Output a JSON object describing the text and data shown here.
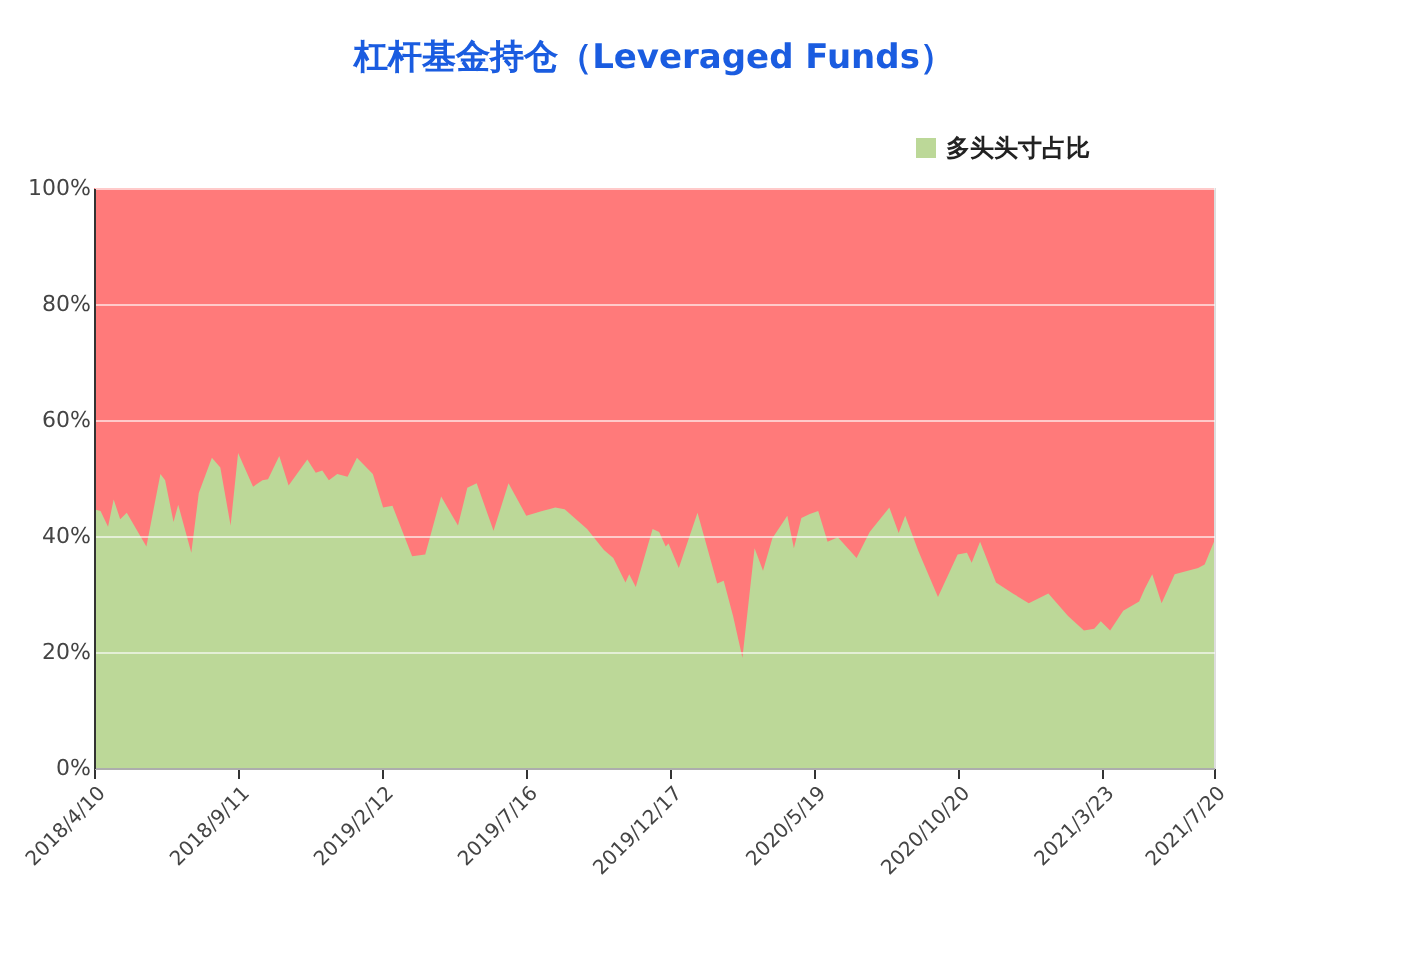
{
  "chart_data": {
    "type": "area",
    "title": "杠杆基金持仓（Leveraged Funds）",
    "x": [
      "2018-04-10",
      "2018-04-17",
      "2018-04-25",
      "2018-05-01",
      "2018-05-08",
      "2018-05-15",
      "2018-06-05",
      "2018-06-20",
      "2018-06-25",
      "2018-07-04",
      "2018-07-09",
      "2018-07-23",
      "2018-07-31",
      "2018-08-14",
      "2018-08-23",
      "2018-09-03",
      "2018-09-11",
      "2018-09-27",
      "2018-10-07",
      "2018-10-13",
      "2018-10-25",
      "2018-11-04",
      "2018-11-24",
      "2018-12-03",
      "2018-12-10",
      "2018-12-17",
      "2018-12-26",
      "2019-01-06",
      "2019-01-16",
      "2019-02-02",
      "2019-02-13",
      "2019-02-23",
      "2019-03-16",
      "2019-03-30",
      "2019-04-16",
      "2019-05-04",
      "2019-05-14",
      "2019-05-24",
      "2019-06-11",
      "2019-06-27",
      "2019-07-16",
      "2019-08-02",
      "2019-08-16",
      "2019-08-26",
      "2019-09-19",
      "2019-10-07",
      "2019-10-17",
      "2019-10-30",
      "2019-11-03",
      "2019-11-10",
      "2019-11-28",
      "2019-12-05",
      "2019-12-12",
      "2019-12-15",
      "2019-12-26",
      "2020-01-15",
      "2020-02-05",
      "2020-02-12",
      "2020-02-22",
      "2020-03-03",
      "2020-03-16",
      "2020-03-25",
      "2020-04-04",
      "2020-04-20",
      "2020-04-27",
      "2020-05-05",
      "2020-05-14",
      "2020-05-23",
      "2020-06-02",
      "2020-06-13",
      "2020-07-03",
      "2020-07-17",
      "2020-08-07",
      "2020-08-17",
      "2020-08-24",
      "2020-09-07",
      "2020-09-28",
      "2020-10-19",
      "2020-10-29",
      "2020-11-03",
      "2020-11-12",
      "2020-11-29",
      "2020-12-17",
      "2021-01-03",
      "2021-01-24",
      "2021-02-14",
      "2021-03-03",
      "2021-03-14",
      "2021-03-21",
      "2021-03-31",
      "2021-04-14",
      "2021-05-01",
      "2021-05-07",
      "2021-05-15",
      "2021-05-25",
      "2021-06-08",
      "2021-07-03",
      "2021-07-10",
      "2021-07-20"
    ],
    "series": [
      {
        "name": "多头头寸占比",
        "color": "#bcd898",
        "values": [
          44.6,
          44.3,
          41.6,
          46.3,
          42.9,
          44.0,
          38.2,
          50.7,
          49.6,
          42.4,
          45.4,
          37.1,
          47.4,
          53.5,
          51.8,
          41.8,
          54.3,
          48.5,
          49.6,
          49.8,
          53.8,
          48.7,
          53.2,
          50.9,
          51.3,
          49.6,
          50.7,
          50.2,
          53.5,
          50.7,
          44.9,
          45.2,
          36.5,
          36.8,
          46.8,
          41.8,
          48.3,
          49.1,
          40.9,
          49.1,
          43.5,
          44.3,
          44.9,
          44.6,
          41.2,
          37.6,
          36.2,
          32.0,
          33.4,
          31.2,
          41.2,
          40.7,
          38.2,
          38.7,
          34.5,
          44.0,
          31.8,
          32.3,
          26.2,
          19.0,
          37.9,
          34.0,
          39.6,
          43.5,
          37.9,
          43.1,
          43.8,
          44.3,
          39.0,
          39.8,
          36.2,
          40.7,
          44.9,
          40.5,
          43.5,
          37.4,
          29.5,
          36.8,
          37.1,
          35.4,
          39.0,
          32.0,
          30.1,
          28.4,
          30.1,
          26.2,
          23.7,
          24.0,
          25.3,
          23.7,
          27.1,
          28.7,
          30.9,
          33.4,
          28.4,
          33.4,
          34.5,
          35.1,
          39.0
        ]
      }
    ],
    "xlim": [
      "2018-04-10",
      "2021-07-20"
    ],
    "xticks": [
      {
        "value": "2018-04-10",
        "label": "2018/4/10"
      },
      {
        "value": "2018-09-11",
        "label": "2018/9/11"
      },
      {
        "value": "2019-02-12",
        "label": "2019/2/12"
      },
      {
        "value": "2019-07-16",
        "label": "2019/7/16"
      },
      {
        "value": "2019-12-17",
        "label": "2019/12/17"
      },
      {
        "value": "2020-05-19",
        "label": "2020/5/19"
      },
      {
        "value": "2020-10-20",
        "label": "2020/10/20"
      },
      {
        "value": "2021-03-23",
        "label": "2021/3/23"
      },
      {
        "value": "2021-07-20",
        "label": "2021/7/20"
      }
    ],
    "ylim": [
      0,
      100
    ],
    "yticks": [
      {
        "value": 0,
        "label": "0%"
      },
      {
        "value": 20,
        "label": "20%"
      },
      {
        "value": 40,
        "label": "40%"
      },
      {
        "value": 60,
        "label": "60%"
      },
      {
        "value": 80,
        "label": "80%"
      },
      {
        "value": 100,
        "label": "100%"
      }
    ],
    "bands": [
      {
        "axis": "y",
        "from": 0,
        "to": 100,
        "label": null,
        "color": "#ff7a7a"
      }
    ],
    "grid": "y",
    "legend": "top right"
  }
}
